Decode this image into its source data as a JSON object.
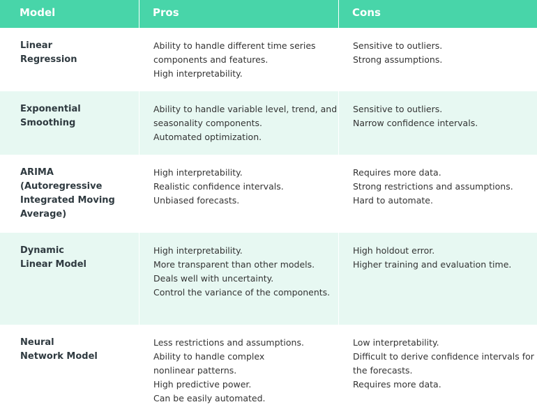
{
  "table": {
    "header": [
      "Model",
      "Pros",
      "Cons"
    ],
    "rows": [
      {
        "model": [
          "Linear",
          "Regression"
        ],
        "pros": [
          "Ability to handle different time series",
          "components and features.",
          "High interpretability."
        ],
        "cons": [
          "Sensitive to outliers.",
          "Strong assumptions."
        ]
      },
      {
        "model": [
          "Exponential",
          "Smoothing"
        ],
        "pros": [
          "Ability to handle variable level, trend, and",
          "seasonality components.",
          "Automated optimization."
        ],
        "cons": [
          "Sensitive to outliers.",
          "Narrow confidence intervals."
        ]
      },
      {
        "model": [
          "ARIMA",
          "(Autoregressive",
          "Integrated Moving",
          "Average)"
        ],
        "pros": [
          "High interpretability.",
          "Realistic confidence intervals.",
          "Unbiased forecasts."
        ],
        "cons": [
          "Requires more data.",
          "Strong restrictions and assumptions.",
          "Hard to automate."
        ]
      },
      {
        "model": [
          "Dynamic",
          "Linear Model"
        ],
        "pros": [
          "High interpretability.",
          "More transparent than other models.",
          "Deals well with uncertainty.",
          "Control the variance of the components."
        ],
        "cons": [
          "High holdout error.",
          "Higher training and evaluation time."
        ]
      },
      {
        "model": [
          "Neural",
          "Network Model"
        ],
        "pros": [
          "Less restrictions and assumptions.",
          "Ability to handle complex",
          "nonlinear patterns.",
          "High predictive power.",
          "Can be easily automated."
        ],
        "cons": [
          "Low interpretability.",
          "Difficult to derive confidence intervals for",
          "the forecasts.",
          "Requires more data."
        ]
      }
    ]
  }
}
